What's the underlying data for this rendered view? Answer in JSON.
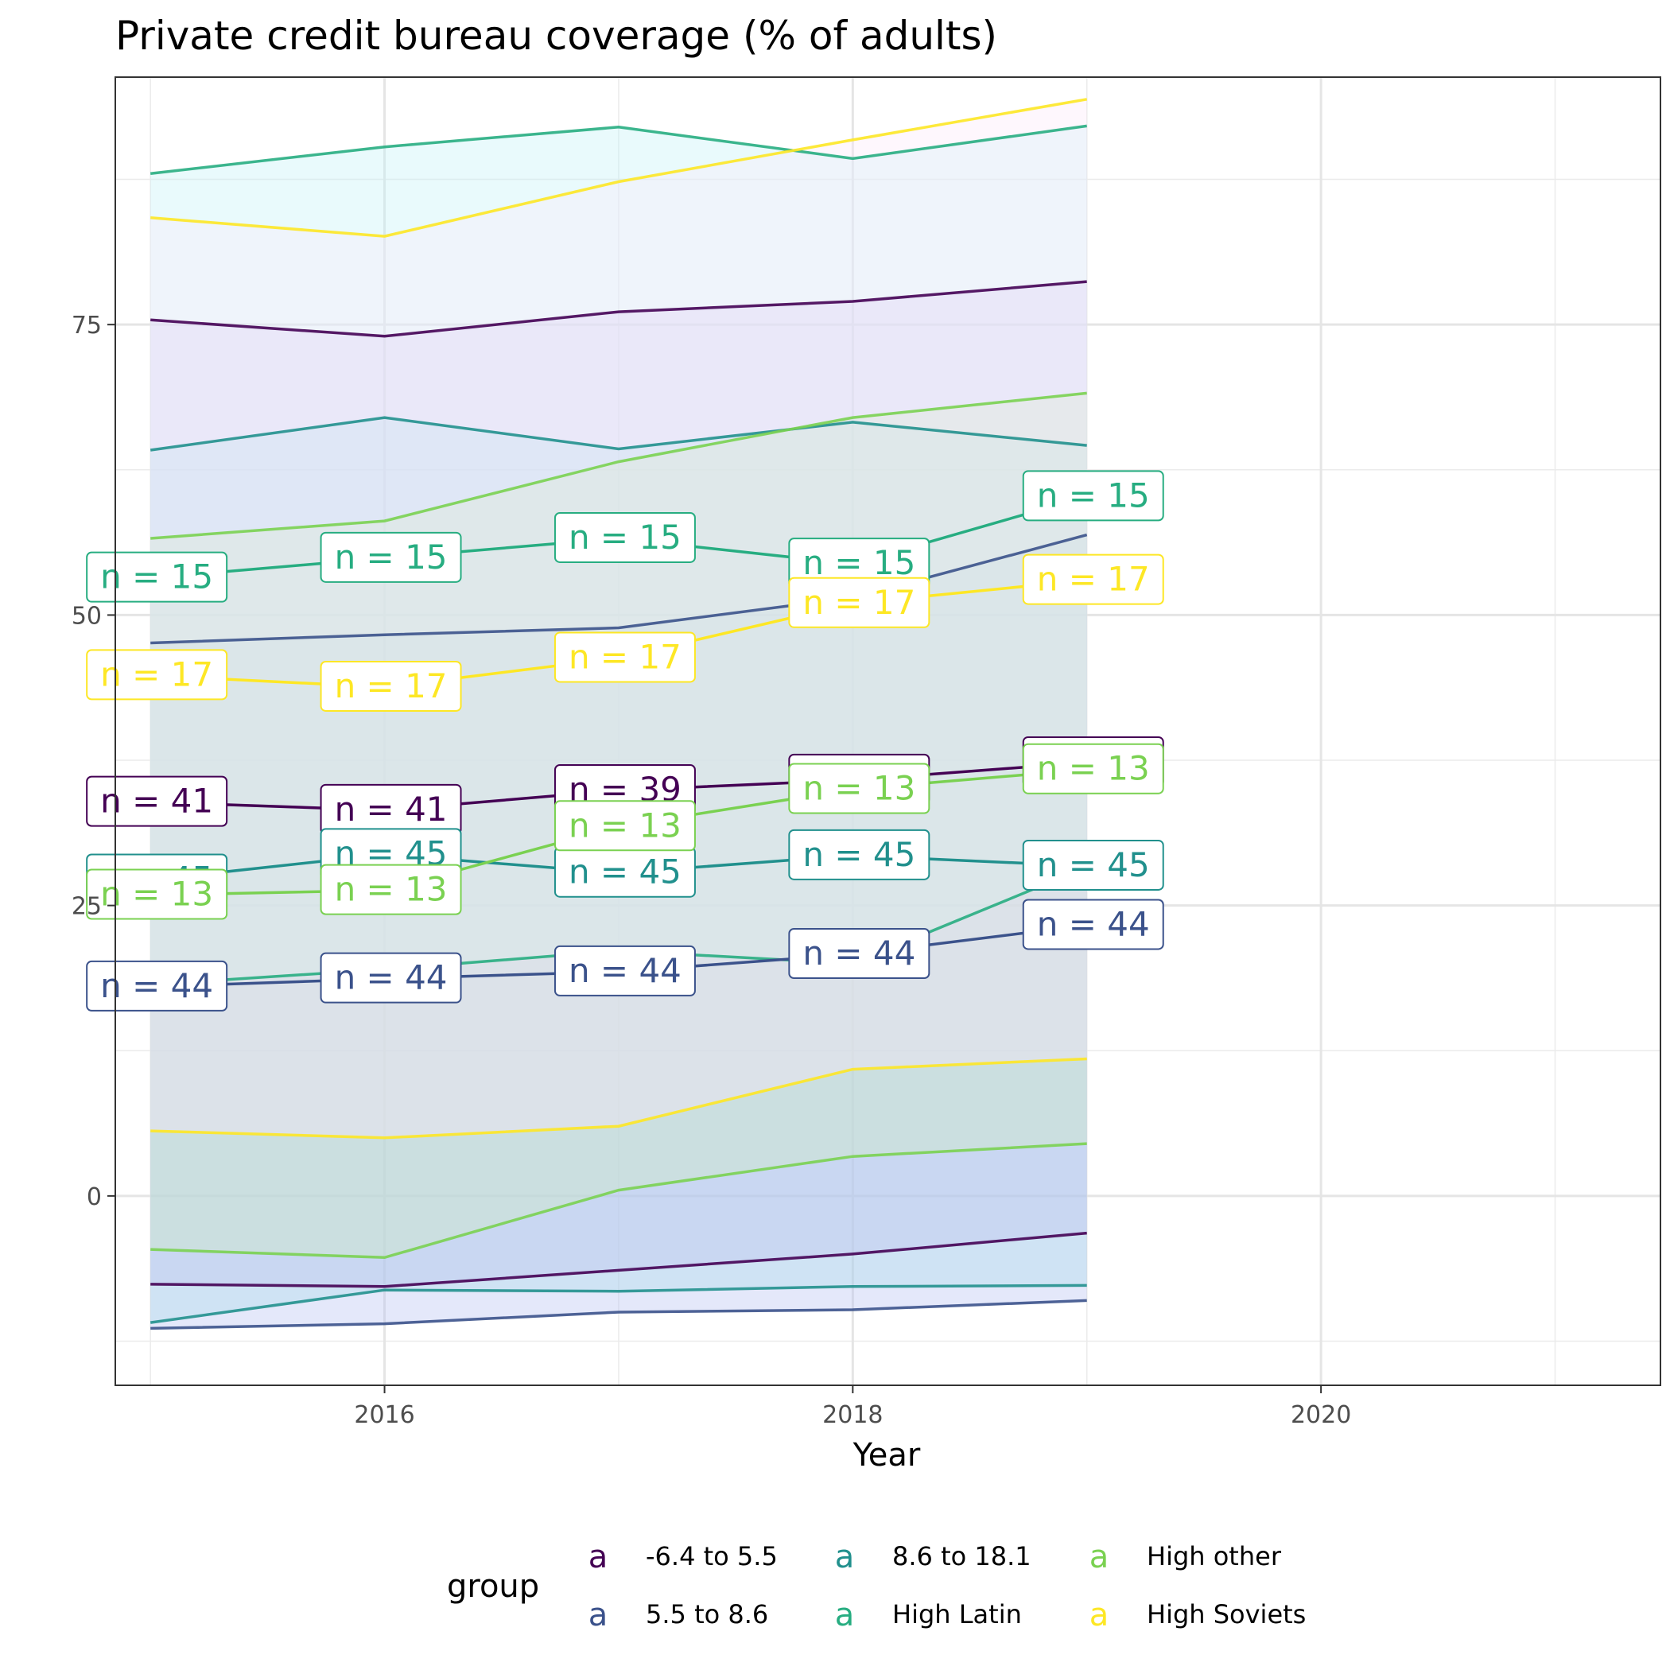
{
  "chart_data": {
    "type": "line",
    "title": "Private credit bureau coverage (% of adults)",
    "xlabel": "Year",
    "ylabel": "",
    "xlim": [
      2014.85,
      2021.45
    ],
    "ylim": [
      -16.3,
      96.3
    ],
    "x_ticks": [
      2016,
      2018,
      2020
    ],
    "y_ticks": [
      0,
      25,
      50,
      75
    ],
    "grid": true,
    "legend_position": "bottom",
    "legend_title": "group",
    "legend_key_glyph": "a",
    "x": [
      2015,
      2016,
      2017,
      2018,
      2019
    ],
    "series": [
      {
        "name": "-6.4 to 5.5",
        "color": "#440154",
        "mean": [
          33.9,
          33.2,
          34.9,
          35.8,
          37.3
        ],
        "upper": [
          75.4,
          74.0,
          76.1,
          77.0,
          78.7
        ],
        "lower": [
          -7.6,
          -7.8,
          -6.4,
          -5.0,
          -3.2
        ],
        "n": [
          "n = 41",
          "n = 41",
          "n = 39",
          "n = 38",
          "n = 38"
        ]
      },
      {
        "name": "5.5 to 8.6",
        "color": "#3b528b",
        "mean": [
          18.0,
          18.7,
          19.3,
          20.8,
          23.3
        ],
        "upper": [
          47.6,
          48.3,
          48.9,
          51.5,
          56.9
        ],
        "lower": [
          -11.4,
          -11.0,
          -10.0,
          -9.8,
          -9.0
        ],
        "n": [
          "n = 44",
          "n = 44",
          "n = 44",
          "n = 44",
          "n = 44"
        ]
      },
      {
        "name": "8.6 to 18.1",
        "color": "#21908d",
        "mean": [
          27.2,
          29.4,
          27.8,
          29.3,
          28.4
        ],
        "upper": [
          64.2,
          67.0,
          64.3,
          66.6,
          64.6
        ],
        "lower": [
          -10.9,
          -8.1,
          -8.2,
          -7.8,
          -7.7
        ],
        "n": [
          "n = 45",
          "n = 45",
          "n = 45",
          "n = 45",
          "n = 45"
        ]
      },
      {
        "name": "High Latin",
        "color": "#27ad81",
        "mean": [
          53.2,
          54.9,
          56.6,
          54.4,
          60.2
        ],
        "upper": [
          88.0,
          90.3,
          92.0,
          89.3,
          92.1
        ],
        "lower": [
          18.2,
          19.5,
          21.1,
          20.0,
          28.3
        ],
        "n": [
          "n = 15",
          "n = 15",
          "n = 15",
          "n = 15",
          "n = 15"
        ]
      },
      {
        "name": "High other",
        "color": "#7ad151",
        "mean": [
          25.9,
          26.3,
          31.8,
          35.0,
          36.7
        ],
        "upper": [
          56.6,
          58.1,
          63.2,
          67.0,
          69.1
        ],
        "lower": [
          -4.6,
          -5.3,
          0.5,
          3.4,
          4.5
        ],
        "n": [
          "n = 13",
          "n = 13",
          "n = 13",
          "n = 13",
          "n = 13"
        ]
      },
      {
        "name": "High Soviets",
        "color": "#fde725",
        "mean": [
          44.8,
          43.8,
          46.3,
          51.0,
          53.0
        ],
        "upper": [
          84.2,
          82.6,
          87.3,
          90.9,
          94.4
        ],
        "lower": [
          5.6,
          5.0,
          6.0,
          10.9,
          11.8
        ],
        "n": [
          "n = 17",
          "n = 17",
          "n = 17",
          "n = 17",
          "n = 17"
        ]
      }
    ]
  }
}
